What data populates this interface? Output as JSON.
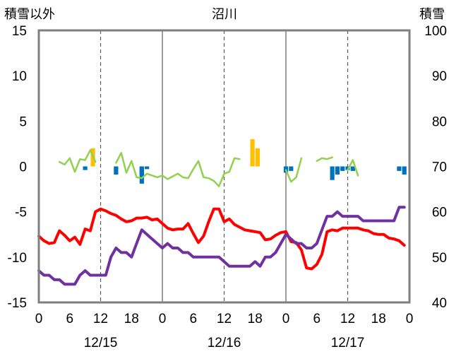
{
  "chart_data": {
    "type": "line",
    "title": "沼川",
    "ylabel_left": "積雪以外",
    "ylabel_right": "積雪",
    "ylim_left": [
      -15,
      15
    ],
    "ylim_right": [
      40,
      100
    ],
    "yticks_left": [
      "15",
      "10",
      "5",
      "0",
      "-5",
      "-10",
      "-15"
    ],
    "yticks_right": [
      "100",
      "90",
      "80",
      "70",
      "60",
      "50",
      "40"
    ],
    "xlim_hours": [
      0,
      72
    ],
    "xtick_labels": [
      "0",
      "6",
      "12",
      "18",
      "0",
      "6",
      "12",
      "18",
      "0",
      "6",
      "12",
      "18",
      "0"
    ],
    "date_labels": [
      "12/15",
      "12/16",
      "12/17"
    ],
    "grid": "dashed vertical lines every 12h; solid vertical lines at day boundaries",
    "series": [
      {
        "key": "red",
        "color": "#ff0000",
        "axis": "left",
        "x": [
          0,
          1,
          2,
          3,
          4,
          5,
          6,
          7,
          8,
          9,
          10,
          11,
          12,
          13,
          14,
          15,
          16,
          17,
          18,
          19,
          20,
          21,
          22,
          23,
          24,
          25,
          26,
          27,
          28,
          29,
          30,
          31,
          32,
          33,
          34,
          35,
          36,
          37,
          38,
          39,
          40,
          41,
          42,
          43,
          44,
          45,
          46,
          47,
          48,
          49,
          50,
          51,
          52,
          53,
          54,
          55,
          56,
          57,
          58,
          59,
          60,
          61,
          62,
          63,
          64,
          65,
          66,
          67,
          68,
          69,
          70,
          71
        ],
        "y": [
          -7.7,
          -8.2,
          -8.5,
          -8.4,
          -7.1,
          -7.6,
          -8.2,
          -7.8,
          -8.6,
          -6.9,
          -7.1,
          -5.0,
          -4.7,
          -4.9,
          -5.2,
          -5.4,
          -5.8,
          -6.1,
          -6.0,
          -5.7,
          -5.7,
          -5.6,
          -5.9,
          -5.8,
          -6.3,
          -6.8,
          -7.0,
          -6.9,
          -6.9,
          -6.3,
          -7.4,
          -8.4,
          -7.7,
          -6.1,
          -4.7,
          -4.7,
          -6.1,
          -5.8,
          -6.4,
          -6.7,
          -7.0,
          -7.1,
          -7.2,
          -7.3,
          -8.1,
          -8.0,
          -7.6,
          -7.3,
          -7.2,
          -8.3,
          -8.4,
          -9.2,
          -11.2,
          -11.3,
          -10.8,
          -9.7,
          -7.2,
          -7.0,
          -7.1,
          -6.8,
          -6.8,
          -6.8,
          -6.8,
          -7.0,
          -7.1,
          -7.4,
          -7.5,
          -7.5,
          -7.9,
          -8.0,
          -8.2,
          -8.7
        ]
      },
      {
        "key": "purple",
        "color": "#7030a0",
        "axis": "right",
        "x": [
          0,
          1,
          2,
          3,
          4,
          5,
          6,
          7,
          8,
          9,
          10,
          11,
          12,
          13,
          14,
          15,
          16,
          17,
          18,
          19,
          20,
          21,
          22,
          23,
          24,
          25,
          26,
          27,
          28,
          29,
          30,
          31,
          32,
          33,
          34,
          35,
          36,
          37,
          38,
          39,
          40,
          41,
          42,
          43,
          44,
          45,
          46,
          47,
          48,
          49,
          50,
          51,
          52,
          53,
          54,
          55,
          56,
          57,
          58,
          59,
          60,
          61,
          62,
          63,
          64,
          65,
          66,
          67,
          68,
          69,
          70,
          71
        ],
        "y": [
          47,
          46,
          46,
          45,
          45,
          44,
          44,
          44,
          46,
          47,
          46,
          46,
          46,
          46,
          50,
          52,
          51,
          51,
          50,
          53,
          56,
          55,
          54,
          53,
          52,
          53,
          52,
          52,
          51,
          51,
          50,
          50,
          50,
          50,
          50,
          50,
          49,
          48,
          48,
          48,
          48,
          48,
          49,
          48,
          50,
          50,
          51,
          53,
          55,
          54,
          53,
          53,
          52,
          52,
          53,
          56,
          59,
          59,
          60,
          59,
          59,
          59,
          59,
          58,
          58,
          58,
          58,
          58,
          58,
          58,
          61,
          61
        ]
      },
      {
        "key": "green",
        "color": "#92d050",
        "axis": "left",
        "segments": [
          {
            "x": [
              4,
              5,
              6,
              7,
              8,
              9,
              10,
              11
            ],
            "y": [
              0.5,
              0.2,
              0.9,
              -0.6,
              0.8,
              0.7,
              1.8,
              0.5
            ]
          },
          {
            "x": [
              15,
              16,
              17,
              18,
              19,
              20,
              21,
              22,
              23,
              24,
              25,
              26,
              27,
              28,
              29,
              30,
              31,
              32,
              33,
              34,
              35,
              36,
              37,
              38,
              39,
              40,
              41
            ],
            "y": [
              0.4,
              1.5,
              -0.7,
              0.6,
              -1.2,
              -1.3,
              -0.8,
              -1.0,
              -1.2,
              -1.0,
              -1.4,
              -1.1,
              -0.8,
              -1.2,
              -1.3,
              -0.3,
              0.6,
              -1.2,
              -1.3,
              -1.6,
              -2.2,
              -0.8,
              -0.6,
              0.9,
              0.8,
              null,
              null
            ]
          },
          {
            "x": [
              48,
              49,
              50,
              51,
              52
            ],
            "y": [
              -0.4,
              -1.7,
              -1.2,
              0.9,
              null
            ]
          },
          {
            "x": [
              54,
              55,
              56,
              57,
              58
            ],
            "y": [
              0.6,
              0.9,
              0.8,
              1.0,
              null
            ]
          },
          {
            "x": [
              60,
              61,
              62
            ],
            "y": [
              -0.4,
              0.7,
              -1.0
            ]
          }
        ]
      }
    ],
    "bars": [
      {
        "color": "#ffc000",
        "x": [
          10.5,
          41.5
        ],
        "y": [
          2.0,
          3.0
        ]
      },
      {
        "color": "#ffc000",
        "x": [
          42.5
        ],
        "y": [
          2.0
        ]
      },
      {
        "color": "#0070c0",
        "x": [
          9,
          15,
          20,
          48,
          49,
          57,
          58,
          59,
          60,
          61,
          70,
          71
        ],
        "y": [
          -0.4,
          -0.9,
          -1.9,
          -0.7,
          -0.5,
          -1.5,
          -0.9,
          -0.5,
          -0.4,
          -0.5,
          -0.5,
          -0.9
        ]
      },
      {
        "color": "#0070c0",
        "x": [
          20,
          21
        ],
        "y": [
          -1.0,
          -0.3
        ]
      }
    ]
  }
}
